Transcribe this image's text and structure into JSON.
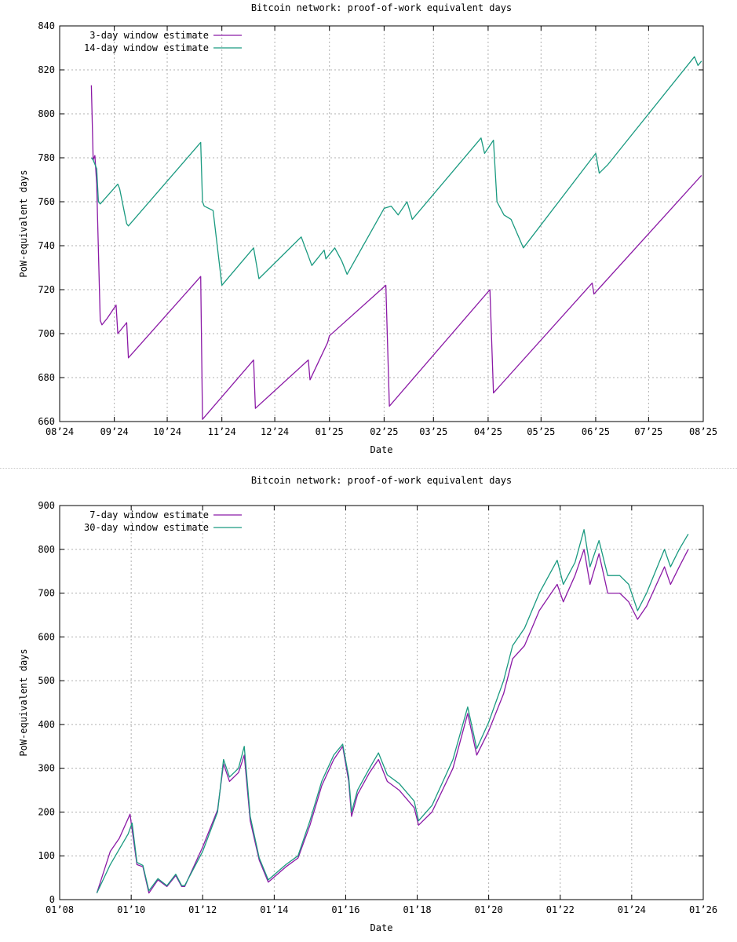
{
  "chart_data": [
    {
      "type": "line",
      "title": "Bitcoin network: proof-of-work equivalent days",
      "xlabel": "Date",
      "ylabel": "PoW-equivalent days",
      "xlim": [
        "2024-08-01",
        "2025-08-01"
      ],
      "ylim": [
        660,
        840
      ],
      "yticks": [
        660,
        680,
        700,
        720,
        740,
        760,
        780,
        800,
        820,
        840
      ],
      "xticks": [
        {
          "date": "2024-08-01",
          "label": "08’24"
        },
        {
          "date": "2024-09-01",
          "label": "09’24"
        },
        {
          "date": "2024-10-01",
          "label": "10’24"
        },
        {
          "date": "2024-11-01",
          "label": "11’24"
        },
        {
          "date": "2024-12-01",
          "label": "12’24"
        },
        {
          "date": "2025-01-01",
          "label": "01’25"
        },
        {
          "date": "2025-02-01",
          "label": "02’25"
        },
        {
          "date": "2025-03-01",
          "label": "03’25"
        },
        {
          "date": "2025-04-01",
          "label": "04’25"
        },
        {
          "date": "2025-05-01",
          "label": "05’25"
        },
        {
          "date": "2025-06-01",
          "label": "06’25"
        },
        {
          "date": "2025-07-01",
          "label": "07’25"
        },
        {
          "date": "2025-08-01",
          "label": "08’25"
        }
      ],
      "grid": true,
      "legend_position": "top-left",
      "series": [
        {
          "name": "3-day window estimate",
          "color": "#8b1aa6",
          "points": [
            [
              "2024-08-19",
              813
            ],
            [
              "2024-08-20",
              779
            ],
            [
              "2024-08-21",
              781
            ],
            [
              "2024-08-22",
              768
            ],
            [
              "2024-08-24",
              706
            ],
            [
              "2024-08-25",
              704
            ],
            [
              "2024-08-28",
              707
            ],
            [
              "2024-09-02",
              713
            ],
            [
              "2024-09-03",
              700
            ],
            [
              "2024-09-08",
              705
            ],
            [
              "2024-09-09",
              689
            ],
            [
              "2024-10-20",
              726
            ],
            [
              "2024-10-21",
              661
            ],
            [
              "2024-11-19",
              688
            ],
            [
              "2024-11-20",
              666
            ],
            [
              "2024-12-20",
              688
            ],
            [
              "2024-12-21",
              679
            ],
            [
              "2024-12-31",
              696
            ],
            [
              "2025-01-01",
              699
            ],
            [
              "2025-02-02",
              722
            ],
            [
              "2025-02-04",
              667
            ],
            [
              "2025-04-02",
              720
            ],
            [
              "2025-04-04",
              673
            ],
            [
              "2025-05-30",
              723
            ],
            [
              "2025-05-31",
              718
            ],
            [
              "2025-07-31",
              772
            ]
          ]
        },
        {
          "name": "14-day window estimate",
          "color": "#1a9a80",
          "points": [
            [
              "2024-08-19",
              780
            ],
            [
              "2024-08-20",
              779
            ],
            [
              "2024-08-22",
              775
            ],
            [
              "2024-08-23",
              760
            ],
            [
              "2024-08-24",
              759
            ],
            [
              "2024-09-03",
              768
            ],
            [
              "2024-09-04",
              766
            ],
            [
              "2024-09-08",
              750
            ],
            [
              "2024-09-09",
              749
            ],
            [
              "2024-10-20",
              787
            ],
            [
              "2024-10-21",
              760
            ],
            [
              "2024-10-22",
              758
            ],
            [
              "2024-10-27",
              756
            ],
            [
              "2024-11-01",
              722
            ],
            [
              "2024-11-19",
              739
            ],
            [
              "2024-11-22",
              725
            ],
            [
              "2024-12-16",
              744
            ],
            [
              "2024-12-22",
              731
            ],
            [
              "2024-12-29",
              738
            ],
            [
              "2024-12-30",
              734
            ],
            [
              "2025-01-04",
              739
            ],
            [
              "2025-01-08",
              733
            ],
            [
              "2025-01-11",
              727
            ],
            [
              "2025-02-01",
              757
            ],
            [
              "2025-02-05",
              758
            ],
            [
              "2025-02-09",
              754
            ],
            [
              "2025-02-14",
              760
            ],
            [
              "2025-02-17",
              752
            ],
            [
              "2025-03-28",
              789
            ],
            [
              "2025-03-30",
              782
            ],
            [
              "2025-04-04",
              788
            ],
            [
              "2025-04-06",
              760
            ],
            [
              "2025-04-10",
              754
            ],
            [
              "2025-04-14",
              752
            ],
            [
              "2025-04-21",
              739
            ],
            [
              "2025-06-01",
              782
            ],
            [
              "2025-06-03",
              773
            ],
            [
              "2025-06-08",
              777
            ],
            [
              "2025-07-27",
              826
            ],
            [
              "2025-07-29",
              822
            ],
            [
              "2025-07-31",
              824
            ]
          ]
        }
      ]
    },
    {
      "type": "line",
      "title": "Bitcoin network: proof-of-work equivalent days",
      "xlabel": "Date",
      "ylabel": "PoW-equivalent days",
      "xlim": [
        "2008-01-01",
        "2026-01-01"
      ],
      "ylim": [
        0,
        900
      ],
      "yticks": [
        0,
        100,
        200,
        300,
        400,
        500,
        600,
        700,
        800,
        900
      ],
      "xticks": [
        {
          "date": "2008-01-01",
          "label": "01’08"
        },
        {
          "date": "2010-01-01",
          "label": "01’10"
        },
        {
          "date": "2012-01-01",
          "label": "01’12"
        },
        {
          "date": "2014-01-01",
          "label": "01’14"
        },
        {
          "date": "2016-01-01",
          "label": "01’16"
        },
        {
          "date": "2018-01-01",
          "label": "01’18"
        },
        {
          "date": "2020-01-01",
          "label": "01’20"
        },
        {
          "date": "2022-01-01",
          "label": "01’22"
        },
        {
          "date": "2024-01-01",
          "label": "01’24"
        },
        {
          "date": "2026-01-01",
          "label": "01’26"
        }
      ],
      "grid": true,
      "legend_position": "top-left",
      "series": [
        {
          "name": "7-day window estimate",
          "color": "#8b1aa6",
          "points": [
            [
              "2009-01-15",
              15
            ],
            [
              "2009-06-01",
              110
            ],
            [
              "2009-09-01",
              140
            ],
            [
              "2009-12-20",
              195
            ],
            [
              "2010-01-10",
              160
            ],
            [
              "2010-03-01",
              80
            ],
            [
              "2010-05-01",
              75
            ],
            [
              "2010-07-01",
              15
            ],
            [
              "2010-10-01",
              45
            ],
            [
              "2011-01-01",
              30
            ],
            [
              "2011-04-01",
              55
            ],
            [
              "2011-06-01",
              30
            ],
            [
              "2011-07-01",
              30
            ],
            [
              "2012-01-01",
              120
            ],
            [
              "2012-06-01",
              205
            ],
            [
              "2012-08-01",
              310
            ],
            [
              "2012-10-01",
              270
            ],
            [
              "2013-01-01",
              290
            ],
            [
              "2013-03-01",
              330
            ],
            [
              "2013-05-01",
              180
            ],
            [
              "2013-08-01",
              90
            ],
            [
              "2013-11-01",
              40
            ],
            [
              "2014-05-01",
              75
            ],
            [
              "2014-09-01",
              95
            ],
            [
              "2015-01-01",
              170
            ],
            [
              "2015-05-01",
              260
            ],
            [
              "2015-09-01",
              320
            ],
            [
              "2015-12-01",
              350
            ],
            [
              "2016-02-01",
              270
            ],
            [
              "2016-03-01",
              190
            ],
            [
              "2016-05-01",
              240
            ],
            [
              "2016-09-01",
              290
            ],
            [
              "2016-12-01",
              320
            ],
            [
              "2017-03-01",
              270
            ],
            [
              "2017-07-01",
              250
            ],
            [
              "2017-12-01",
              210
            ],
            [
              "2018-01-15",
              170
            ],
            [
              "2018-06-01",
              200
            ],
            [
              "2019-01-01",
              300
            ],
            [
              "2019-06-01",
              425
            ],
            [
              "2019-09-01",
              330
            ],
            [
              "2020-01-01",
              385
            ],
            [
              "2020-06-01",
              470
            ],
            [
              "2020-09-01",
              550
            ],
            [
              "2021-01-01",
              580
            ],
            [
              "2021-06-01",
              660
            ],
            [
              "2021-12-01",
              720
            ],
            [
              "2022-02-01",
              680
            ],
            [
              "2022-06-01",
              740
            ],
            [
              "2022-09-01",
              800
            ],
            [
              "2022-11-01",
              720
            ],
            [
              "2023-02-01",
              790
            ],
            [
              "2023-05-01",
              700
            ],
            [
              "2023-09-01",
              700
            ],
            [
              "2023-12-01",
              680
            ],
            [
              "2024-03-01",
              640
            ],
            [
              "2024-06-01",
              670
            ],
            [
              "2024-12-01",
              760
            ],
            [
              "2025-02-01",
              720
            ],
            [
              "2025-05-01",
              760
            ],
            [
              "2025-08-01",
              800
            ]
          ]
        },
        {
          "name": "30-day window estimate",
          "color": "#1a9a80",
          "points": [
            [
              "2009-01-15",
              15
            ],
            [
              "2009-06-01",
              80
            ],
            [
              "2009-12-01",
              150
            ],
            [
              "2010-01-10",
              175
            ],
            [
              "2010-03-01",
              85
            ],
            [
              "2010-05-01",
              78
            ],
            [
              "2010-07-01",
              20
            ],
            [
              "2010-10-01",
              48
            ],
            [
              "2011-01-01",
              32
            ],
            [
              "2011-04-01",
              58
            ],
            [
              "2011-06-01",
              32
            ],
            [
              "2011-07-01",
              32
            ],
            [
              "2012-01-01",
              110
            ],
            [
              "2012-06-01",
              200
            ],
            [
              "2012-08-01",
              320
            ],
            [
              "2012-10-01",
              280
            ],
            [
              "2013-01-01",
              300
            ],
            [
              "2013-03-01",
              350
            ],
            [
              "2013-05-01",
              190
            ],
            [
              "2013-08-01",
              95
            ],
            [
              "2013-11-01",
              45
            ],
            [
              "2014-05-01",
              80
            ],
            [
              "2014-09-01",
              100
            ],
            [
              "2015-01-01",
              180
            ],
            [
              "2015-05-01",
              270
            ],
            [
              "2015-09-01",
              330
            ],
            [
              "2015-12-01",
              355
            ],
            [
              "2016-02-01",
              280
            ],
            [
              "2016-03-01",
              200
            ],
            [
              "2016-05-01",
              250
            ],
            [
              "2016-09-01",
              300
            ],
            [
              "2016-12-01",
              335
            ],
            [
              "2017-03-01",
              285
            ],
            [
              "2017-07-01",
              265
            ],
            [
              "2017-12-01",
              225
            ],
            [
              "2018-01-15",
              180
            ],
            [
              "2018-06-01",
              215
            ],
            [
              "2019-01-01",
              320
            ],
            [
              "2019-06-01",
              440
            ],
            [
              "2019-09-01",
              345
            ],
            [
              "2020-01-01",
              405
            ],
            [
              "2020-06-01",
              500
            ],
            [
              "2020-09-01",
              580
            ],
            [
              "2021-01-01",
              620
            ],
            [
              "2021-06-01",
              700
            ],
            [
              "2021-12-01",
              775
            ],
            [
              "2022-02-01",
              720
            ],
            [
              "2022-06-01",
              770
            ],
            [
              "2022-09-01",
              845
            ],
            [
              "2022-11-01",
              760
            ],
            [
              "2023-02-01",
              820
            ],
            [
              "2023-05-01",
              740
            ],
            [
              "2023-09-01",
              740
            ],
            [
              "2023-12-01",
              720
            ],
            [
              "2024-03-01",
              660
            ],
            [
              "2024-06-01",
              700
            ],
            [
              "2024-12-01",
              800
            ],
            [
              "2025-02-01",
              760
            ],
            [
              "2025-05-01",
              800
            ],
            [
              "2025-08-01",
              835
            ]
          ]
        }
      ]
    }
  ]
}
